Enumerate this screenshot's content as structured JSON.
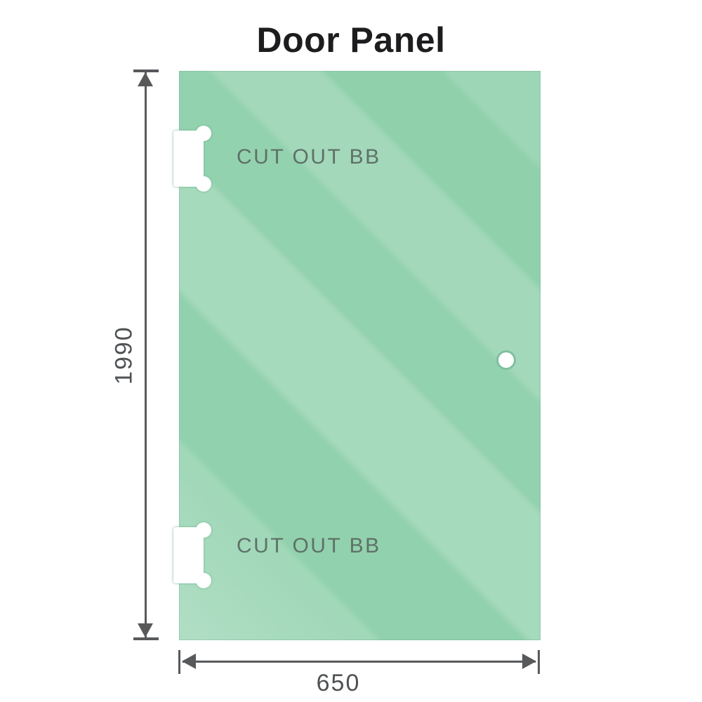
{
  "title": "Door Panel",
  "panel": {
    "glass_color": "#8ccfa9",
    "glass_highlight": "#a9dec1",
    "cutouts": [
      {
        "label": "CUT OUT BB"
      },
      {
        "label": "CUT OUT BB"
      }
    ],
    "hole_ring_color": "#7fc0a0"
  },
  "dimensions": {
    "height": "1990",
    "width": "650",
    "line_color": "#58595b"
  }
}
